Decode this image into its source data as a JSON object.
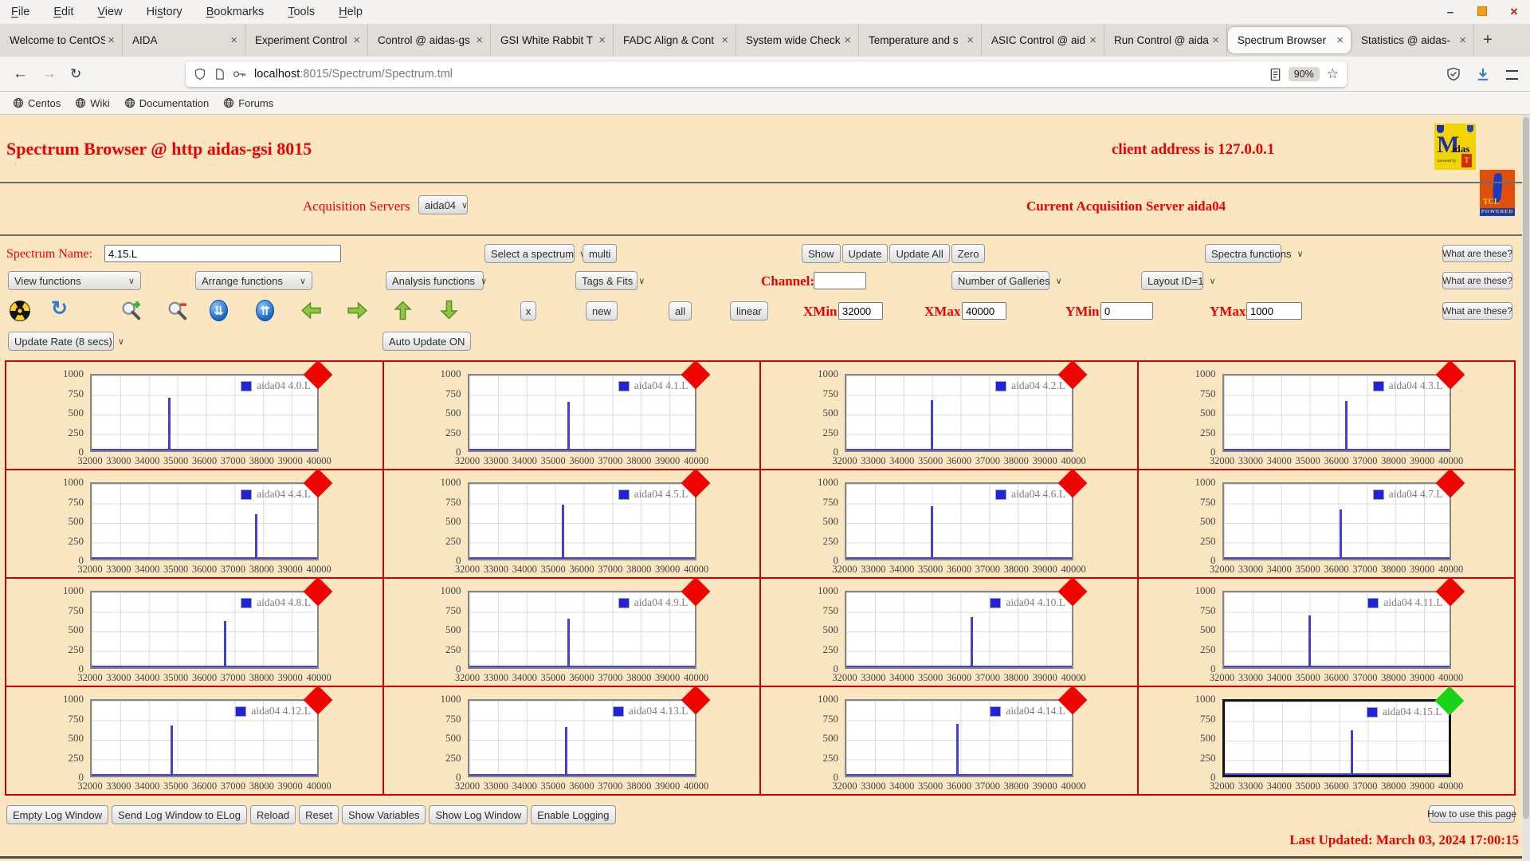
{
  "browser": {
    "menu": [
      {
        "label": "File",
        "u": 0
      },
      {
        "label": "Edit",
        "u": 0
      },
      {
        "label": "View",
        "u": 0
      },
      {
        "label": "History",
        "u": 2
      },
      {
        "label": "Bookmarks",
        "u": 0
      },
      {
        "label": "Tools",
        "u": 0
      },
      {
        "label": "Help",
        "u": 0
      }
    ],
    "tabs": [
      {
        "title": "Welcome to CentOS",
        "active": false
      },
      {
        "title": "AIDA",
        "active": false
      },
      {
        "title": "Experiment Control",
        "active": false
      },
      {
        "title": "Control @ aidas-gs",
        "active": false
      },
      {
        "title": "GSI White Rabbit T",
        "active": false
      },
      {
        "title": "FADC Align & Cont",
        "active": false
      },
      {
        "title": "System wide Check",
        "active": false
      },
      {
        "title": "Temperature and s",
        "active": false
      },
      {
        "title": "ASIC Control @ aid",
        "active": false
      },
      {
        "title": "Run Control @ aida",
        "active": false
      },
      {
        "title": "Spectrum Browser",
        "active": true
      },
      {
        "title": "Statistics @ aidas-",
        "active": false
      }
    ],
    "new_tab_label": "+",
    "nav": {
      "url_host": "localhost",
      "url_path": ":8015/Spectrum/Spectrum.tml",
      "zoom_badge": "90%"
    },
    "bookmarks": [
      "Centos",
      "Wiki",
      "Documentation",
      "Forums"
    ]
  },
  "header": {
    "title": "Spectrum Browser @ http aidas-gsi 8015",
    "client_address": "client address is 127.0.0.1",
    "midas_logo_text": "M",
    "midas_logo_text2": "idas",
    "midas_powered_by": "powered by",
    "tcl_logo_text": "TCL",
    "tcl_logo_sub": "POWERED"
  },
  "acquisition": {
    "label": "Acquisition Servers",
    "server": "aida04",
    "current": "Current Acquisition Server aida04"
  },
  "controls": {
    "spectrum_name_label": "Spectrum Name:",
    "spectrum_name_value": "4.15.L",
    "select_spectrum": "Select a spectrum",
    "multi": "multi",
    "show": "Show",
    "update": "Update",
    "update_all": "Update All",
    "zero": "Zero",
    "spectra_functions": "Spectra functions",
    "what_are_these": "What are these?",
    "view_functions": "View functions",
    "arrange_functions": "Arrange functions",
    "analysis_functions": "Analysis functions",
    "tags_fits": "Tags & Fits",
    "channel_label": "Channel:",
    "channel_value": "",
    "number_of_galleries": "Number of Galleries",
    "layout_id": "Layout ID=1",
    "x": "x",
    "new": "new",
    "all": "all",
    "linear": "linear",
    "xmin_label": "XMin",
    "xmin": "32000",
    "xmax_label": "XMax",
    "xmax": "40000",
    "ymin_label": "YMin",
    "ymin": "0",
    "ymax_label": "YMax",
    "ymax": "1000",
    "update_rate": "Update Rate (8 secs)",
    "auto_update": "Auto Update ON"
  },
  "footer": {
    "buttons": [
      "Empty Log Window",
      "Send Log Window to ELog",
      "Reload",
      "Reset",
      "Show Variables",
      "Show Log Window",
      "Enable Logging"
    ],
    "how_to": "How to use this page",
    "last_updated": "Last Updated: March 03, 2024 17:00:15"
  },
  "chart_data": {
    "type": "bar",
    "layout": "4x4 gallery of single-peak spectra",
    "xlim": [
      32000,
      40000
    ],
    "ylim": [
      0,
      1000
    ],
    "x_ticks": [
      32000,
      33000,
      34000,
      35000,
      36000,
      37000,
      38000,
      39000,
      40000
    ],
    "y_ticks": [
      0,
      250,
      500,
      750,
      1000
    ],
    "grid": true,
    "legend_position": "top-right",
    "series_color": "#4040dd",
    "charts": [
      {
        "name": "aida04 4.0.L",
        "peak_x": 34700,
        "peak_y": 705,
        "selected": false,
        "status": "red"
      },
      {
        "name": "aida04 4.1.L",
        "peak_x": 35500,
        "peak_y": 645,
        "selected": false,
        "status": "red"
      },
      {
        "name": "aida04 4.2.L",
        "peak_x": 35000,
        "peak_y": 670,
        "selected": false,
        "status": "red"
      },
      {
        "name": "aida04 4.3.L",
        "peak_x": 36300,
        "peak_y": 655,
        "selected": false,
        "status": "red"
      },
      {
        "name": "aida04 4.4.L",
        "peak_x": 37800,
        "peak_y": 595,
        "selected": false,
        "status": "red"
      },
      {
        "name": "aida04 4.5.L",
        "peak_x": 35300,
        "peak_y": 725,
        "selected": false,
        "status": "red"
      },
      {
        "name": "aida04 4.6.L",
        "peak_x": 35000,
        "peak_y": 700,
        "selected": false,
        "status": "red"
      },
      {
        "name": "aida04 4.7.L",
        "peak_x": 36100,
        "peak_y": 655,
        "selected": false,
        "status": "red"
      },
      {
        "name": "aida04 4.8.L",
        "peak_x": 36700,
        "peak_y": 620,
        "selected": false,
        "status": "red"
      },
      {
        "name": "aida04 4.9.L",
        "peak_x": 35500,
        "peak_y": 650,
        "selected": false,
        "status": "red"
      },
      {
        "name": "aida04 4.10.L",
        "peak_x": 36400,
        "peak_y": 670,
        "selected": false,
        "status": "red"
      },
      {
        "name": "aida04 4.11.L",
        "peak_x": 35000,
        "peak_y": 690,
        "selected": false,
        "status": "red"
      },
      {
        "name": "aida04 4.12.L",
        "peak_x": 34800,
        "peak_y": 670,
        "selected": false,
        "status": "red"
      },
      {
        "name": "aida04 4.13.L",
        "peak_x": 35400,
        "peak_y": 645,
        "selected": false,
        "status": "red"
      },
      {
        "name": "aida04 4.14.L",
        "peak_x": 35900,
        "peak_y": 695,
        "selected": false,
        "status": "red"
      },
      {
        "name": "aida04 4.15.L",
        "peak_x": 36500,
        "peak_y": 605,
        "selected": true,
        "status": "green"
      }
    ]
  }
}
